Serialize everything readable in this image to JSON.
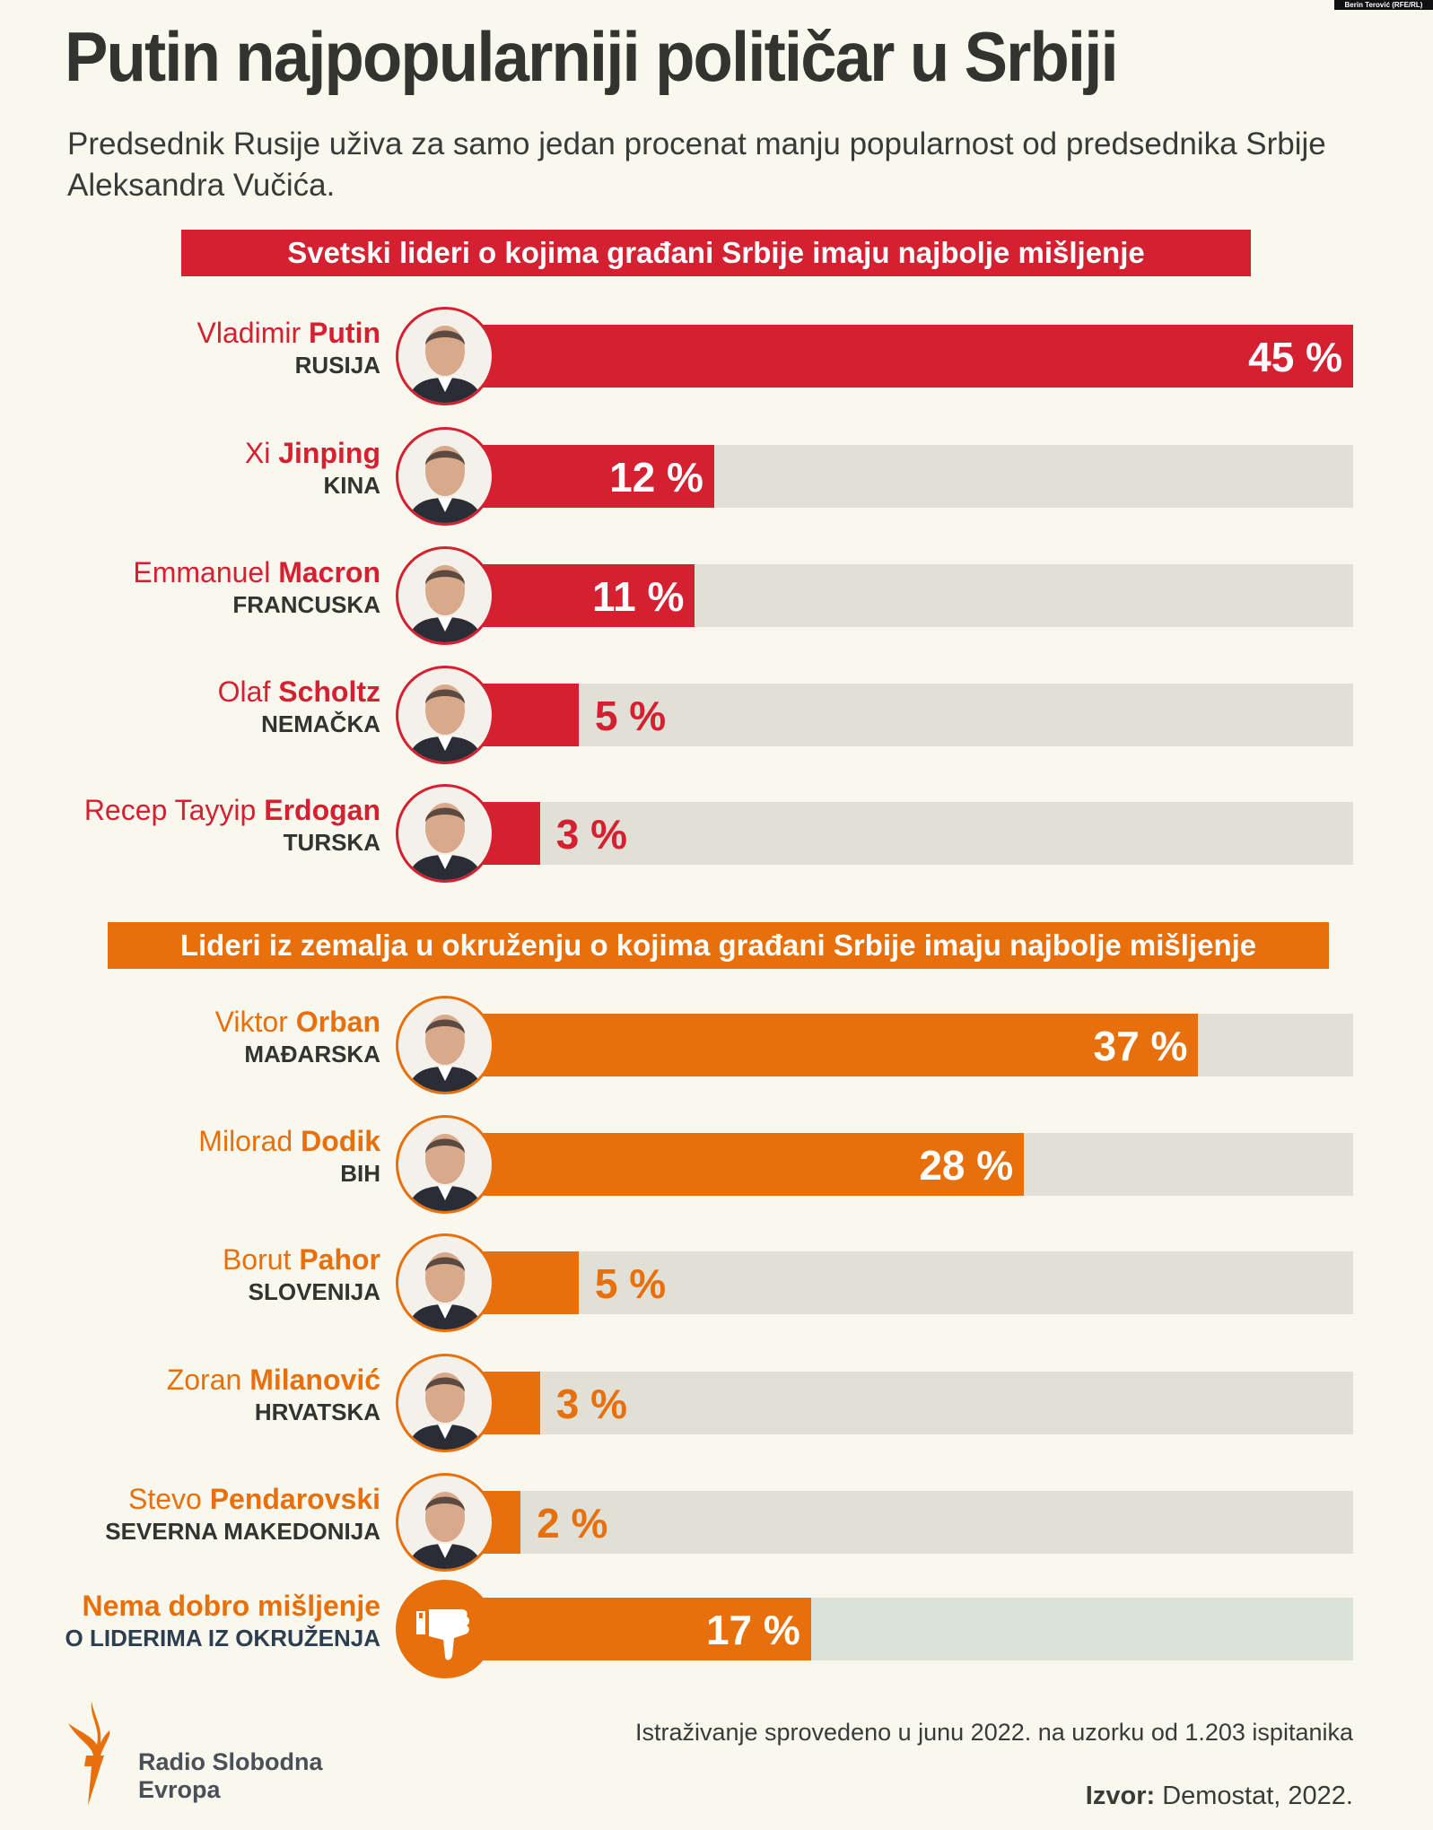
{
  "credit": "Berin Terović (RFE/RL)",
  "title": "Putin najpopularniji političar u Srbiji",
  "subtitle": "Predsednik Rusije uživa za samo jedan procenat manju popularnost od predsednika Srbije Aleksandra Vučića.",
  "colors": {
    "red": "#d42030",
    "orange": "#e8700c",
    "track": "#e1e0d6",
    "track_none": "#dbe3d9",
    "background": "#f9f8ee"
  },
  "chart_data": [
    {
      "type": "bar",
      "title": "Svetski lideri o kojima građani Srbije imaju najbolje mišljenje",
      "unit": "%",
      "xlim": [
        0,
        45
      ],
      "categories": [
        "Vladimir Putin",
        "Xi Jinping",
        "Emmanuel Macron",
        "Olaf Scholtz",
        "Recep Tayyip Erdogan"
      ],
      "rows": [
        {
          "first": "Vladimir",
          "last": "Putin",
          "country": "RUSIJA",
          "value": 45,
          "label": "45 %"
        },
        {
          "first": "Xi",
          "last": "Jinping",
          "country": "KINA",
          "value": 12,
          "label": "12 %"
        },
        {
          "first": "Emmanuel",
          "last": "Macron",
          "country": "FRANCUSKA",
          "value": 11,
          "label": "11 %"
        },
        {
          "first": "Olaf",
          "last": "Scholtz",
          "country": "NEMAČKA",
          "value": 5,
          "label": "5 %"
        },
        {
          "first": "Recep Tayyip",
          "last": "Erdogan",
          "country": "TURSKA",
          "value": 3,
          "label": "3 %"
        }
      ]
    },
    {
      "type": "bar",
      "title": "Lideri iz zemalja u okruženju o kojima građani Srbije imaju najbolje mišljenje",
      "unit": "%",
      "xlim": [
        0,
        45
      ],
      "categories": [
        "Viktor Orban",
        "Milorad Dodik",
        "Borut Pahor",
        "Zoran Milanović",
        "Stevo Pendarovski",
        "Nema dobro mišljenje"
      ],
      "rows": [
        {
          "first": "Viktor",
          "last": "Orban",
          "country": "MAĐARSKA",
          "value": 37,
          "label": "37 %"
        },
        {
          "first": "Milorad",
          "last": "Dodik",
          "country": "BIH",
          "value": 28,
          "label": "28 %"
        },
        {
          "first": "Borut",
          "last": "Pahor",
          "country": "SLOVENIJA",
          "value": 5,
          "label": "5 %"
        },
        {
          "first": "Zoran",
          "last": "Milanović",
          "country": "HRVATSKA",
          "value": 3,
          "label": "3 %"
        },
        {
          "first": "Stevo",
          "last": "Pendarovski",
          "country": "SEVERNA MAKEDONIJA",
          "value": 2,
          "label": "2 %"
        },
        {
          "first": "",
          "last": "Nema dobro mišljenje",
          "country": "O LIDERIMA IZ OKRUŽENJA",
          "value": 17,
          "label": "17 %",
          "icon": "thumbs-down-icon"
        }
      ]
    }
  ],
  "footer": {
    "note": "Istraživanje sprovedeno u junu 2022. na uzorku od 1.203 ispitanika",
    "source_label": "Izvor:",
    "source": "Demostat, 2022.",
    "logo_line1": "Radio Slobodna",
    "logo_line2": "Evropa"
  }
}
